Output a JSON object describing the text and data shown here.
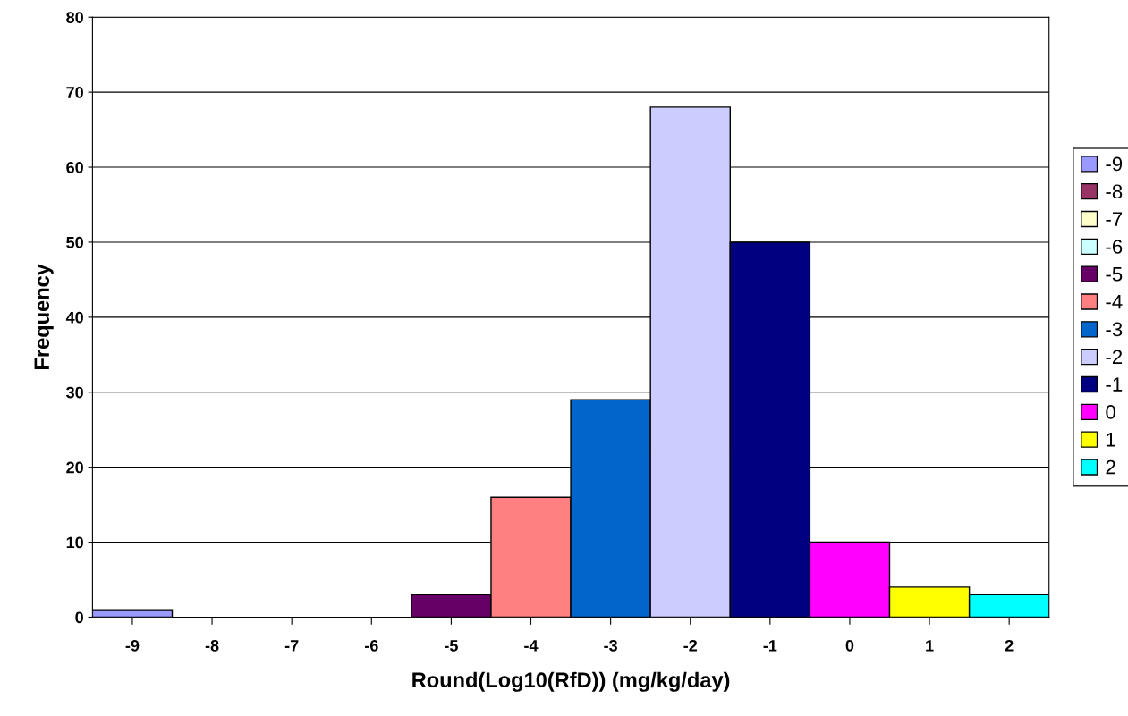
{
  "chart_data": {
    "type": "bar",
    "xlabel": "Round(Log10(RfD)) (mg/kg/day)",
    "ylabel": "Frequency",
    "categories": [
      "-9",
      "-8",
      "-7",
      "-6",
      "-5",
      "-4",
      "-3",
      "-2",
      "-1",
      "0",
      "1",
      "2"
    ],
    "series": [
      {
        "name": "-9",
        "color": "#9999ff",
        "values": [
          1,
          null,
          null,
          null,
          null,
          null,
          null,
          null,
          null,
          null,
          null,
          null
        ]
      },
      {
        "name": "-8",
        "color": "#993366",
        "values": [
          null,
          0,
          null,
          null,
          null,
          null,
          null,
          null,
          null,
          null,
          null,
          null
        ]
      },
      {
        "name": "-7",
        "color": "#ffffcc",
        "values": [
          null,
          null,
          0,
          null,
          null,
          null,
          null,
          null,
          null,
          null,
          null,
          null
        ]
      },
      {
        "name": "-6",
        "color": "#ccffff",
        "values": [
          null,
          null,
          null,
          0,
          null,
          null,
          null,
          null,
          null,
          null,
          null,
          null
        ]
      },
      {
        "name": "-5",
        "color": "#660066",
        "values": [
          null,
          null,
          null,
          null,
          3,
          null,
          null,
          null,
          null,
          null,
          null,
          null
        ]
      },
      {
        "name": "-4",
        "color": "#ff8080",
        "values": [
          null,
          null,
          null,
          null,
          null,
          16,
          null,
          null,
          null,
          null,
          null,
          null
        ]
      },
      {
        "name": "-3",
        "color": "#0066cc",
        "values": [
          null,
          null,
          null,
          null,
          null,
          null,
          29,
          null,
          null,
          null,
          null,
          null
        ]
      },
      {
        "name": "-2",
        "color": "#ccccff",
        "values": [
          null,
          null,
          null,
          null,
          null,
          null,
          null,
          68,
          null,
          null,
          null,
          null
        ]
      },
      {
        "name": "-1",
        "color": "#000080",
        "values": [
          null,
          null,
          null,
          null,
          null,
          null,
          null,
          null,
          50,
          null,
          null,
          null
        ]
      },
      {
        "name": "0",
        "color": "#ff00ff",
        "values": [
          null,
          null,
          null,
          null,
          null,
          null,
          null,
          null,
          null,
          10,
          null,
          null
        ]
      },
      {
        "name": "1",
        "color": "#ffff00",
        "values": [
          null,
          null,
          null,
          null,
          null,
          null,
          null,
          null,
          null,
          null,
          4,
          null
        ]
      },
      {
        "name": "2",
        "color": "#00ffff",
        "values": [
          null,
          null,
          null,
          null,
          null,
          null,
          null,
          null,
          null,
          null,
          null,
          3
        ]
      }
    ],
    "ylim": [
      0,
      80
    ],
    "yticks": [
      0,
      10,
      20,
      30,
      40,
      50,
      60,
      70,
      80
    ],
    "grid": "y",
    "legend": "right"
  }
}
